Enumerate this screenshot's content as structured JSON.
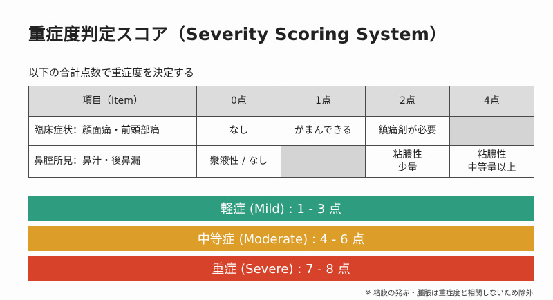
{
  "title": "重症度判定スコア（Severity Scoring System）",
  "subtitle": "以下の合計点数で重症度を決定する",
  "table": {
    "headers": [
      "項目（Item）",
      "0点",
      "1点",
      "2点",
      "4点"
    ],
    "rows": [
      {
        "label": "臨床症状：顔面痛・前頭部痛",
        "cells": [
          "なし",
          "がまんできる",
          "鎮痛剤が必要",
          ""
        ]
      },
      {
        "label": "鼻腔所見：鼻汁・後鼻漏",
        "cells": [
          "漿液性 / なし",
          "",
          "粘膿性\n少量",
          "粘膿性\n中等量以上"
        ]
      }
    ]
  },
  "severity_bands": [
    {
      "label": "軽症 (Mild) : 1 - 3 点",
      "color": "#2e9c7e"
    },
    {
      "label": "中等症 (Moderate) : 4 - 6 点",
      "color": "#dd9d29"
    },
    {
      "label": "重症 (Severe) : 7 - 8 点",
      "color": "#d6432a"
    }
  ],
  "footnote": "※ 粘膜の発赤・腫脹は重症度と相関しないため除外"
}
